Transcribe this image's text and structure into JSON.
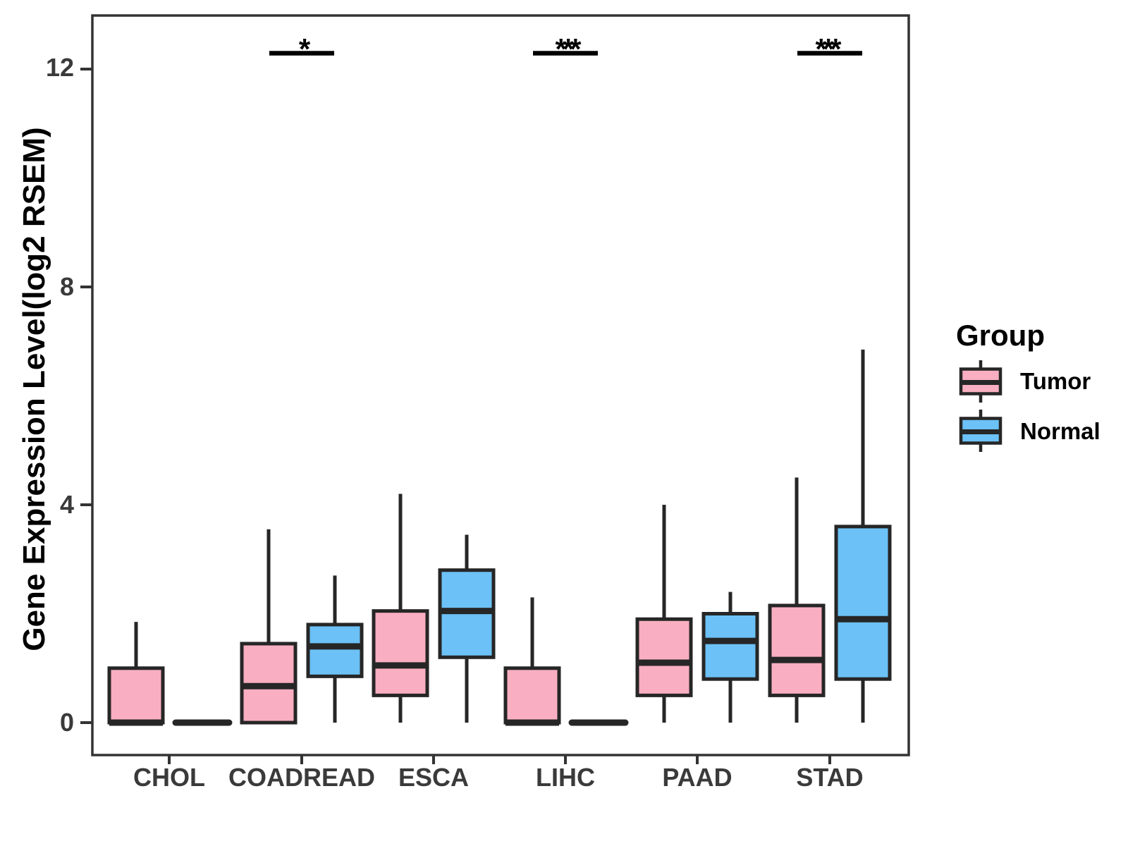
{
  "chart_data": {
    "type": "boxplot",
    "title": "",
    "xlabel": "",
    "ylabel": "Gene Expression Level(log2 RSEM)",
    "yticks": [
      "0",
      "4",
      "8",
      "12"
    ],
    "ylim": [
      -0.6,
      13.0
    ],
    "grid": false,
    "categories": [
      "CHOL",
      "COADREAD",
      "ESCA",
      "LIHC",
      "PAAD",
      "STAD"
    ],
    "legend": {
      "title": "Group",
      "position": "right"
    },
    "colors": {
      "tumor": "#F9AFC1",
      "normal": "#6CC1F6",
      "box_border": "#262626",
      "axis": "#333333",
      "tick_label": "#3a3a3a"
    },
    "series": [
      {
        "name": "Tumor",
        "color": "#F9AFC1",
        "stats": [
          {
            "category": "CHOL",
            "min": 0,
            "q1": 0,
            "median": 0,
            "q3": 1.0,
            "max": 1.85
          },
          {
            "category": "COADREAD",
            "min": 0,
            "q1": 0,
            "median": 0.67,
            "q3": 1.45,
            "max": 3.55
          },
          {
            "category": "ESCA",
            "min": 0,
            "q1": 0.5,
            "median": 1.05,
            "q3": 2.05,
            "max": 4.2
          },
          {
            "category": "LIHC",
            "min": 0,
            "q1": 0,
            "median": 0,
            "q3": 1.0,
            "max": 2.3
          },
          {
            "category": "PAAD",
            "min": 0,
            "q1": 0.5,
            "median": 1.1,
            "q3": 1.9,
            "max": 4.0
          },
          {
            "category": "STAD",
            "min": 0,
            "q1": 0.5,
            "median": 1.15,
            "q3": 2.15,
            "max": 4.5
          }
        ]
      },
      {
        "name": "Normal",
        "color": "#6CC1F6",
        "stats": [
          {
            "category": "CHOL",
            "min": 0,
            "q1": 0,
            "median": 0,
            "q3": 0,
            "max": 0
          },
          {
            "category": "COADREAD",
            "min": 0,
            "q1": 0.85,
            "median": 1.4,
            "q3": 1.8,
            "max": 2.7
          },
          {
            "category": "ESCA",
            "min": 0,
            "q1": 1.2,
            "median": 2.05,
            "q3": 2.8,
            "max": 3.45
          },
          {
            "category": "LIHC",
            "min": 0,
            "q1": 0,
            "median": 0,
            "q3": 0,
            "max": 0
          },
          {
            "category": "PAAD",
            "min": 0,
            "q1": 0.8,
            "median": 1.5,
            "q3": 2.0,
            "max": 2.4
          },
          {
            "category": "STAD",
            "min": 0,
            "q1": 0.8,
            "median": 1.9,
            "q3": 3.6,
            "max": 6.85
          }
        ]
      }
    ],
    "significance": [
      {
        "category": "COADREAD",
        "label": "*"
      },
      {
        "category": "LIHC",
        "label": "***"
      },
      {
        "category": "STAD",
        "label": "***"
      }
    ]
  }
}
